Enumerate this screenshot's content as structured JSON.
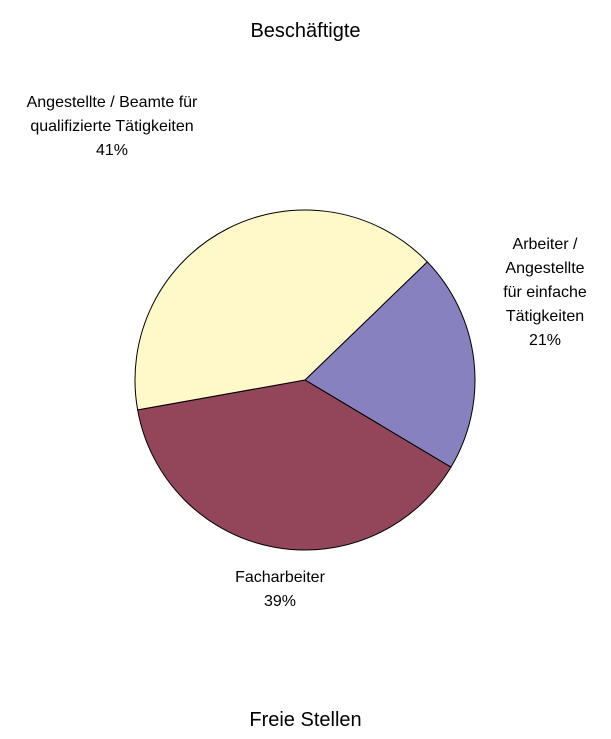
{
  "chart_data": [
    {
      "type": "pie",
      "title": "Beschäftigte",
      "categories": [
        "Arbeiter / Angestellte für einfache Tätigkeiten",
        "Facharbeiter",
        "Angestellte / Beamte für qualifizierte Tätigkeiten"
      ],
      "values": [
        21,
        39,
        41
      ],
      "value_labels": [
        "21%",
        "39%",
        "41%"
      ],
      "colors": [
        "#8782bf",
        "#934659",
        "#fff9c9"
      ]
    },
    {
      "type": "pie",
      "title": "Freie Stellen"
    }
  ]
}
